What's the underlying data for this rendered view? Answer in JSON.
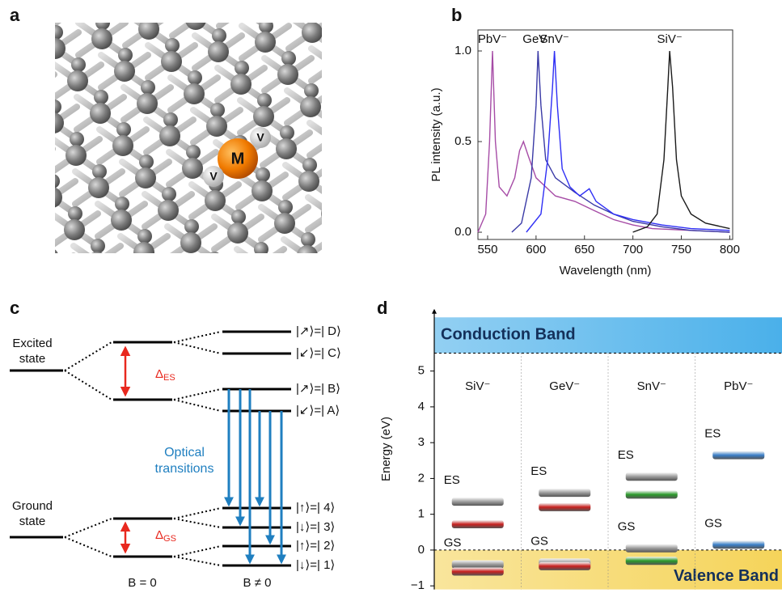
{
  "panel_letters": [
    "a",
    "b",
    "c",
    "d"
  ],
  "lattice": {
    "metal": "M",
    "vacancies": [
      "V",
      "V"
    ]
  },
  "chart_data": [
    {
      "type": "line",
      "x_label": "Wavelength (nm)",
      "y_label": "PL intensity (a.u.)",
      "xlim": [
        540,
        803
      ],
      "xticks": [
        550,
        600,
        650,
        700,
        750,
        800
      ],
      "ylim": [
        -0.04,
        1.116
      ],
      "yticks": [
        {
          "value": 0,
          "label": "0.0"
        },
        {
          "value": 0.5,
          "label": "0.5"
        },
        {
          "value": 1,
          "label": "1.0"
        }
      ],
      "series": [
        {
          "name": "PbV⁻",
          "color": "#a64ca6",
          "x": [
            540,
            548,
            552,
            555,
            558,
            562,
            570,
            578,
            583,
            587,
            592,
            600,
            620,
            640,
            660,
            680,
            700,
            720,
            760,
            800
          ],
          "values": [
            0.0,
            0.1,
            0.5,
            1.0,
            0.5,
            0.25,
            0.2,
            0.3,
            0.45,
            0.5,
            0.42,
            0.3,
            0.2,
            0.17,
            0.12,
            0.07,
            0.04,
            0.02,
            0.01,
            0.0
          ]
        },
        {
          "name": "GeV⁻",
          "color": "#3a3aa6",
          "x": [
            575,
            585,
            595,
            600,
            602,
            605,
            610,
            620,
            640,
            660,
            680,
            700,
            730,
            760,
            800
          ],
          "values": [
            0.0,
            0.05,
            0.3,
            0.7,
            1.0,
            0.7,
            0.4,
            0.3,
            0.22,
            0.15,
            0.1,
            0.06,
            0.03,
            0.01,
            0.0
          ]
        },
        {
          "name": "SnV⁻",
          "color": "#2e2ef5",
          "x": [
            590,
            605,
            612,
            617,
            619,
            622,
            627,
            635,
            645,
            655,
            662,
            680,
            700,
            730,
            760,
            800
          ],
          "values": [
            0.0,
            0.1,
            0.4,
            0.8,
            1.0,
            0.7,
            0.35,
            0.25,
            0.2,
            0.24,
            0.17,
            0.1,
            0.07,
            0.04,
            0.02,
            0.01
          ]
        },
        {
          "name": "SiV⁻",
          "color": "#1a1a1a",
          "x": [
            700,
            715,
            725,
            732,
            736,
            738,
            741,
            745,
            750,
            760,
            775,
            800
          ],
          "values": [
            0.0,
            0.03,
            0.1,
            0.4,
            0.8,
            1.0,
            0.8,
            0.4,
            0.2,
            0.1,
            0.05,
            0.02
          ]
        }
      ]
    },
    {
      "type": "levels",
      "y_label": "Energy (eV)",
      "ylim": [
        -1.1,
        6.8
      ],
      "yticks": [
        {
          "value": -1,
          "label": "−1"
        },
        0,
        1,
        2,
        3,
        4,
        5
      ],
      "bands": [
        {
          "label": "Conduction Band",
          "range": [
            5.5,
            6.5
          ],
          "color": "#4ab0ea"
        },
        {
          "label": "Valence Band",
          "range": [
            -1.1,
            0
          ],
          "color": "#f5d45a"
        }
      ],
      "columns": [
        {
          "name": "SiV⁻",
          "states": [
            {
              "label": "ES",
              "values": [
                1.35,
                0.72
              ],
              "colors": [
                "#9a9a9a",
                "#c8201e"
              ]
            },
            {
              "label": "GS",
              "values": [
                -0.4,
                -0.6
              ],
              "colors": [
                "#9a9a9a",
                "#c8201e"
              ]
            }
          ]
        },
        {
          "name": "GeV⁻",
          "states": [
            {
              "label": "ES",
              "values": [
                1.6,
                1.2
              ],
              "colors": [
                "#9a9a9a",
                "#c8201e"
              ]
            },
            {
              "label": "GS",
              "values": [
                -0.35,
                -0.45
              ],
              "colors": [
                "#9a9a9a",
                "#c8201e"
              ]
            }
          ]
        },
        {
          "name": "SnV⁻",
          "states": [
            {
              "label": "ES",
              "values": [
                2.05,
                1.55
              ],
              "colors": [
                "#9a9a9a",
                "#2a9a2a"
              ]
            },
            {
              "label": "GS",
              "values": [
                0.05,
                -0.3
              ],
              "colors": [
                "#9a9a9a",
                "#2a9a2a"
              ]
            }
          ]
        },
        {
          "name": "PbV⁻",
          "states": [
            {
              "label": "ES",
              "values": [
                2.65
              ],
              "colors": [
                "#3a7fc8"
              ]
            },
            {
              "label": "GS",
              "values": [
                0.15
              ],
              "colors": [
                "#3a7fc8"
              ]
            }
          ]
        }
      ]
    }
  ],
  "level_diagram": {
    "excited_state": [
      "Excited",
      "state"
    ],
    "ground_state": [
      "Ground",
      "state"
    ],
    "delta": "Δ",
    "delta_es": "ES",
    "delta_gs": "GS",
    "kets": [
      "|↗⟩=| D⟩",
      "|↙⟩=| C⟩",
      "|↗⟩=| B⟩",
      "|↙⟩=| A⟩",
      "|↑⟩=| 4⟩",
      "|↓⟩=| 3⟩",
      "|↑⟩=| 2⟩",
      "|↓⟩=| 1⟩"
    ],
    "transitions": [
      "Optical",
      "transitions"
    ],
    "b_zero": "B = 0",
    "b_nonzero": "B ≠ 0"
  }
}
